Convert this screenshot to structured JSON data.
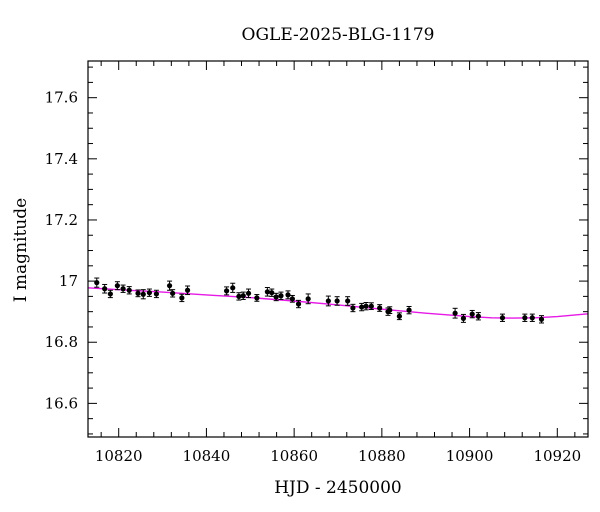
{
  "chart_data": {
    "type": "scatter",
    "title": "OGLE-2025-BLG-1179",
    "xlabel": "HJD - 2450000",
    "ylabel": "I magnitude",
    "xlim": [
      10813,
      10927
    ],
    "ylim": [
      17.72,
      16.49
    ],
    "y_inverted": true,
    "x_ticks": [
      10820,
      10840,
      10860,
      10880,
      10900,
      10920
    ],
    "y_ticks": [
      16.6,
      16.8,
      17,
      17.2,
      17.4,
      17.6
    ],
    "x_tick_labels": [
      "10820",
      "10840",
      "10860",
      "10880",
      "10900",
      "10920"
    ],
    "y_tick_labels": [
      "16.6",
      "16.8",
      "17",
      "17.2",
      "17.4",
      "17.6"
    ],
    "grid": false,
    "colors": {
      "points": "#000000",
      "model": "#e619e6"
    },
    "series": [
      {
        "kind": "points",
        "x": [
          10815.0,
          10816.8,
          10818.1,
          10819.7,
          10821.0,
          10822.4,
          10824.4,
          10825.6,
          10827.0,
          10828.6,
          10831.6,
          10832.3,
          10834.4,
          10835.7,
          10844.6,
          10846.0,
          10847.4,
          10848.4,
          10849.6,
          10851.5,
          10853.9,
          10854.9,
          10855.9,
          10857.0,
          10858.6,
          10859.6,
          10861.0,
          10863.2,
          10867.8,
          10869.8,
          10872.2,
          10873.4,
          10875.4,
          10876.4,
          10877.6,
          10879.5,
          10881.4,
          10881.8,
          10884.0,
          10886.2,
          10896.7,
          10898.6,
          10900.6,
          10902.0,
          10907.5,
          10912.6,
          10914.3,
          10916.4
        ],
        "y": [
          16.995,
          16.975,
          16.958,
          16.985,
          16.975,
          16.97,
          16.96,
          16.957,
          16.962,
          16.958,
          16.985,
          16.96,
          16.945,
          16.97,
          16.968,
          16.978,
          16.95,
          16.952,
          16.96,
          16.945,
          16.965,
          16.962,
          16.948,
          16.952,
          16.955,
          16.942,
          16.925,
          16.942,
          16.935,
          16.935,
          16.935,
          16.912,
          16.915,
          16.918,
          16.918,
          16.912,
          16.9,
          16.905,
          16.885,
          16.905,
          16.895,
          16.878,
          16.892,
          16.885,
          16.88,
          16.88,
          16.88,
          16.875
        ],
        "err": [
          0.015,
          0.014,
          0.012,
          0.013,
          0.012,
          0.012,
          0.011,
          0.015,
          0.012,
          0.012,
          0.015,
          0.012,
          0.012,
          0.014,
          0.013,
          0.015,
          0.012,
          0.012,
          0.014,
          0.011,
          0.014,
          0.012,
          0.012,
          0.012,
          0.013,
          0.011,
          0.012,
          0.016,
          0.016,
          0.014,
          0.014,
          0.012,
          0.012,
          0.012,
          0.011,
          0.011,
          0.012,
          0.011,
          0.011,
          0.012,
          0.016,
          0.013,
          0.012,
          0.012,
          0.012,
          0.012,
          0.012,
          0.012
        ]
      },
      {
        "kind": "model-line",
        "x": [
          10813,
          10820,
          10830,
          10840,
          10850,
          10860,
          10870,
          10880,
          10890,
          10900,
          10905,
          10910,
          10915,
          10920,
          10927
        ],
        "y": [
          16.978,
          16.972,
          16.964,
          16.955,
          16.946,
          16.935,
          16.922,
          16.908,
          16.895,
          16.884,
          16.88,
          16.879,
          16.88,
          16.884,
          16.893
        ]
      }
    ]
  }
}
